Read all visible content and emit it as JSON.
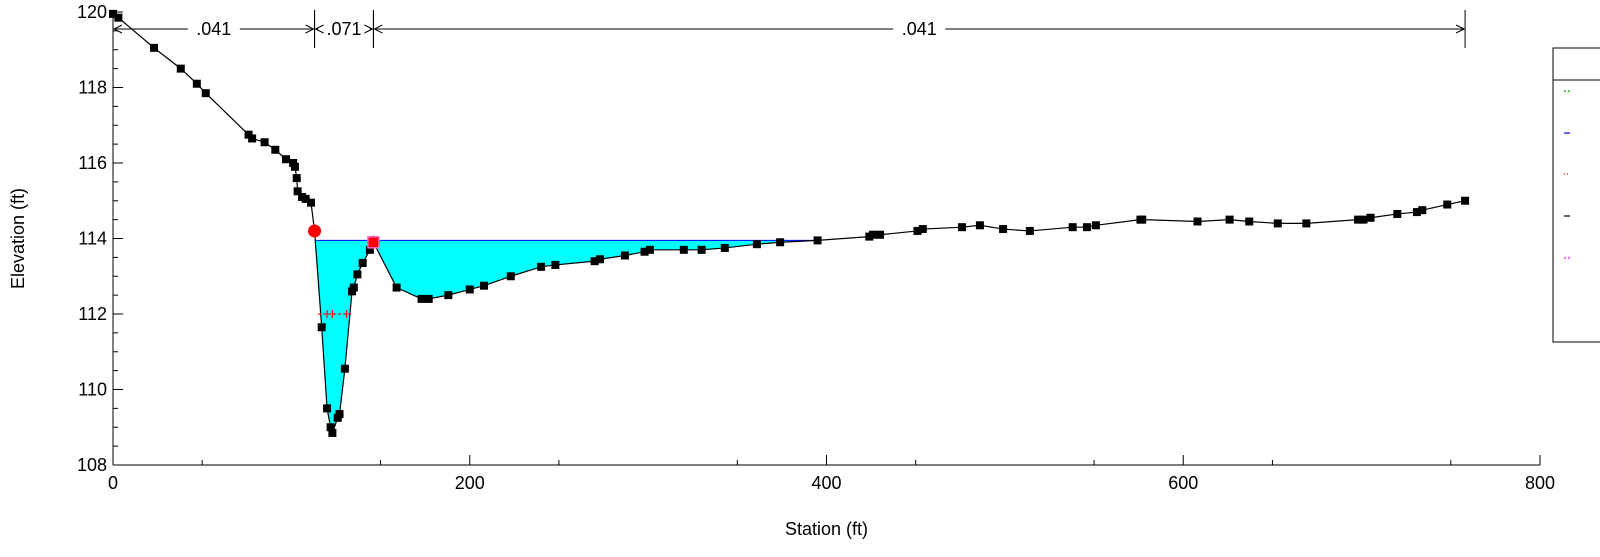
{
  "chart_data": {
    "type": "line",
    "title": "",
    "xlabel": "Station (ft)",
    "ylabel": "Elevation (ft)",
    "xlim": [
      0,
      800
    ],
    "ylim": [
      108,
      120
    ],
    "x_ticks": [
      0,
      200,
      400,
      600,
      800
    ],
    "y_ticks": [
      108,
      110,
      112,
      114,
      116,
      118,
      120
    ],
    "grid": false,
    "legend": "right, entries cut off",
    "colors": {
      "ground": "#000000",
      "water_fill": "#00ffff",
      "water_surface": "#0000ff",
      "bank_station": "#ff0000",
      "critical": "#ff0000"
    },
    "series": [
      {
        "values": [
          [
            0,
            119.95
          ],
          [
            3,
            119.85
          ],
          [
            23,
            119.05
          ],
          [
            38,
            118.5
          ],
          [
            47,
            118.1
          ],
          [
            52,
            117.85
          ],
          [
            76,
            116.75
          ],
          [
            78,
            116.65
          ],
          [
            85,
            116.55
          ],
          [
            91,
            116.35
          ],
          [
            97,
            116.1
          ],
          [
            101,
            116.0
          ],
          [
            102,
            115.9
          ],
          [
            103,
            115.6
          ],
          [
            103.5,
            115.25
          ],
          [
            106,
            115.1
          ],
          [
            108,
            115.05
          ],
          [
            111,
            114.95
          ],
          [
            113,
            114.2
          ],
          [
            117,
            111.65
          ],
          [
            120,
            109.5
          ],
          [
            122,
            109.0
          ],
          [
            123,
            108.85
          ],
          [
            126,
            109.25
          ],
          [
            127,
            109.35
          ],
          [
            130,
            110.55
          ],
          [
            134,
            112.6
          ],
          [
            135,
            112.7
          ],
          [
            137,
            113.05
          ],
          [
            140,
            113.35
          ],
          [
            144,
            113.7
          ],
          [
            146,
            113.9
          ],
          [
            159,
            112.7
          ],
          [
            173,
            112.4
          ],
          [
            177,
            112.4
          ],
          [
            188,
            112.5
          ],
          [
            200,
            112.65
          ],
          [
            208,
            112.75
          ],
          [
            223,
            113.0
          ],
          [
            240,
            113.25
          ],
          [
            248,
            113.3
          ],
          [
            270,
            113.4
          ],
          [
            273,
            113.45
          ],
          [
            287,
            113.55
          ],
          [
            298,
            113.65
          ],
          [
            301,
            113.7
          ],
          [
            320,
            113.7
          ],
          [
            330,
            113.7
          ],
          [
            343,
            113.75
          ],
          [
            361,
            113.85
          ],
          [
            374,
            113.9
          ],
          [
            395,
            113.95
          ],
          [
            424,
            114.05
          ],
          [
            426,
            114.1
          ],
          [
            430,
            114.1
          ],
          [
            451,
            114.2
          ],
          [
            454,
            114.25
          ],
          [
            476,
            114.3
          ],
          [
            486,
            114.35
          ],
          [
            499,
            114.25
          ],
          [
            514,
            114.2
          ],
          [
            538,
            114.3
          ],
          [
            546,
            114.3
          ],
          [
            551,
            114.35
          ],
          [
            576,
            114.5
          ],
          [
            577,
            114.5
          ],
          [
            608,
            114.45
          ],
          [
            626,
            114.5
          ],
          [
            637,
            114.45
          ],
          [
            653,
            114.4
          ],
          [
            669,
            114.4
          ],
          [
            698,
            114.5
          ],
          [
            701,
            114.5
          ],
          [
            705,
            114.55
          ],
          [
            720,
            114.65
          ],
          [
            731,
            114.7
          ],
          [
            734,
            114.75
          ],
          [
            748,
            114.9
          ],
          [
            758,
            115.0
          ]
        ]
      }
    ],
    "water_surface": {
      "elevation": 113.95,
      "x_start": 113,
      "x_end": 395
    },
    "critical_depth": {
      "elevation": 112.0,
      "x_start": 115,
      "x_end": 134,
      "ticks": [
        120,
        123,
        131
      ]
    },
    "bank_stations": [
      {
        "x": 113,
        "y": 114.2
      },
      {
        "x": 146,
        "y": 113.9
      }
    ],
    "mannings_n": [
      {
        "label": ".041",
        "x_start": 0,
        "x_end": 113
      },
      {
        "label": ".071",
        "x_start": 113,
        "x_end": 146
      },
      {
        "label": ".041",
        "x_start": 146,
        "x_end": 758
      }
    ]
  }
}
